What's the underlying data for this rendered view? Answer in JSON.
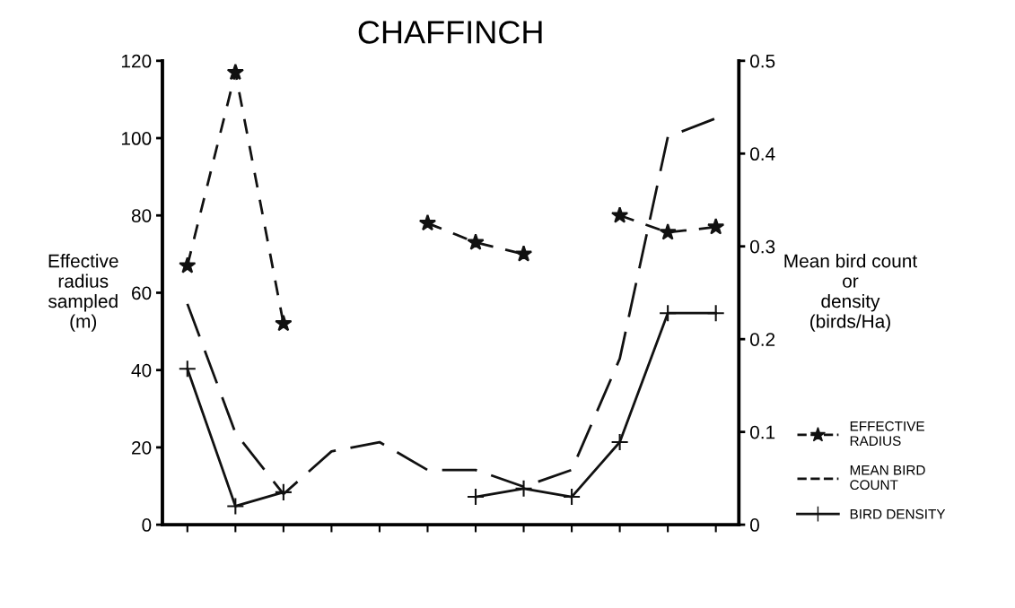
{
  "chart_data": {
    "type": "line",
    "title": "CHAFFINCH",
    "ylabel": "Effective\nradius\nsampled\n(m)",
    "y2label": "Mean bird count\nor\ndensity\n(birds/Ha)",
    "categories": [
      null,
      null,
      null,
      null,
      null,
      null,
      null,
      null,
      null,
      null,
      null,
      null
    ],
    "series": [
      {
        "name": "EFFECTIVE\nRADIUS",
        "color": "#111111",
        "marker": "star",
        "line_style": "dashed",
        "values": [
          67,
          117,
          52,
          null,
          null,
          78,
          73,
          70,
          null,
          80,
          75.6,
          77
        ]
      },
      {
        "name": "MEAN BIRD\nCOUNT",
        "color": "#111111",
        "marker": "none",
        "line_style": "longdash",
        "axis": "y2",
        "values": [
          0.238,
          0.099,
          0.033,
          0.079,
          0.089,
          0.059,
          0.059,
          0.041,
          0.059,
          0.179,
          0.418,
          0.438
        ]
      },
      {
        "name": "BIRD DENSITY",
        "color": "#111111",
        "marker": "cross",
        "line_style": "solid",
        "axis": "y2",
        "values": [
          0.168,
          0.02,
          0.035,
          null,
          null,
          null,
          0.03,
          0.039,
          0.03,
          0.089,
          0.228,
          0.228
        ]
      }
    ],
    "ylim": [
      0,
      120
    ],
    "yticks": [
      0,
      20,
      40,
      60,
      80,
      100,
      120
    ],
    "y2lim": [
      0,
      0.5
    ],
    "y2ticks": [
      0,
      0.1,
      0.2,
      0.3,
      0.4,
      0.5
    ],
    "tick_labels": "y",
    "grid": false,
    "legend": "bottom right"
  }
}
